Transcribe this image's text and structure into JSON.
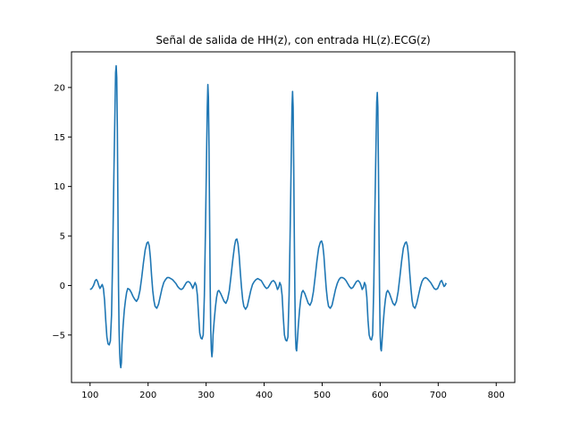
{
  "chart_data": {
    "type": "line",
    "title": "Señal de salida de HH(z), con entrada HL(z).ECG(z)",
    "xlabel": "",
    "ylabel": "",
    "xlim": [
      68,
      832
    ],
    "ylim": [
      -9.8,
      23.6
    ],
    "xticks": [
      100,
      200,
      300,
      400,
      500,
      600,
      700,
      800
    ],
    "yticks": [
      -5,
      0,
      5,
      10,
      15,
      20
    ],
    "grid": false,
    "legend": "none",
    "series_color": "#1f77b4",
    "series": [
      {
        "points": [
          [
            100,
            -0.4
          ],
          [
            103,
            -0.3
          ],
          [
            106,
            0.0
          ],
          [
            109,
            0.5
          ],
          [
            111,
            0.6
          ],
          [
            113,
            0.4
          ],
          [
            115,
            0.0
          ],
          [
            117,
            -0.3
          ],
          [
            119,
            -0.1
          ],
          [
            121,
            0.1
          ],
          [
            123,
            -0.3
          ],
          [
            125,
            -1.5
          ],
          [
            127,
            -3.5
          ],
          [
            129,
            -5.2
          ],
          [
            131,
            -5.9
          ],
          [
            133,
            -6.0
          ],
          [
            135,
            -5.6
          ],
          [
            137,
            -3.0
          ],
          [
            139,
            3.0
          ],
          [
            141,
            11.0
          ],
          [
            143,
            18.0
          ],
          [
            144,
            21.5
          ],
          [
            145,
            22.2
          ],
          [
            146,
            21.0
          ],
          [
            147,
            16.0
          ],
          [
            148,
            8.0
          ],
          [
            149,
            0.0
          ],
          [
            150,
            -4.5
          ],
          [
            151,
            -6.8
          ],
          [
            152,
            -7.9
          ],
          [
            153,
            -8.3
          ],
          [
            154,
            -7.8
          ],
          [
            155,
            -6.0
          ],
          [
            157,
            -4.0
          ],
          [
            159,
            -2.5
          ],
          [
            161,
            -1.5
          ],
          [
            163,
            -0.7
          ],
          [
            165,
            -0.3
          ],
          [
            168,
            -0.4
          ],
          [
            171,
            -0.7
          ],
          [
            174,
            -1.1
          ],
          [
            177,
            -1.4
          ],
          [
            180,
            -1.6
          ],
          [
            183,
            -1.3
          ],
          [
            186,
            -0.5
          ],
          [
            189,
            0.8
          ],
          [
            192,
            2.3
          ],
          [
            195,
            3.6
          ],
          [
            198,
            4.3
          ],
          [
            200,
            4.4
          ],
          [
            202,
            4.0
          ],
          [
            204,
            2.8
          ],
          [
            206,
            1.0
          ],
          [
            208,
            -0.5
          ],
          [
            210,
            -1.5
          ],
          [
            212,
            -2.1
          ],
          [
            215,
            -2.3
          ],
          [
            218,
            -1.9
          ],
          [
            221,
            -1.1
          ],
          [
            224,
            -0.3
          ],
          [
            227,
            0.3
          ],
          [
            230,
            0.6
          ],
          [
            233,
            0.8
          ],
          [
            236,
            0.8
          ],
          [
            239,
            0.7
          ],
          [
            242,
            0.6
          ],
          [
            245,
            0.4
          ],
          [
            248,
            0.2
          ],
          [
            251,
            -0.1
          ],
          [
            254,
            -0.3
          ],
          [
            257,
            -0.4
          ],
          [
            260,
            -0.3
          ],
          [
            263,
            0.0
          ],
          [
            266,
            0.3
          ],
          [
            269,
            0.4
          ],
          [
            272,
            0.3
          ],
          [
            275,
            0.0
          ],
          [
            277,
            -0.3
          ],
          [
            279,
            0.0
          ],
          [
            281,
            0.3
          ],
          [
            283,
            0.0
          ],
          [
            285,
            -1.0
          ],
          [
            287,
            -3.0
          ],
          [
            289,
            -4.8
          ],
          [
            291,
            -5.3
          ],
          [
            293,
            -5.4
          ],
          [
            295,
            -5.0
          ],
          [
            297,
            -1.0
          ],
          [
            299,
            6.0
          ],
          [
            301,
            14.0
          ],
          [
            302,
            18.0
          ],
          [
            303,
            20.3
          ],
          [
            304,
            19.0
          ],
          [
            305,
            14.0
          ],
          [
            306,
            7.0
          ],
          [
            307,
            0.0
          ],
          [
            308,
            -4.5
          ],
          [
            309,
            -6.5
          ],
          [
            310,
            -7.2
          ],
          [
            311,
            -6.6
          ],
          [
            312,
            -5.0
          ],
          [
            314,
            -3.5
          ],
          [
            316,
            -2.2
          ],
          [
            318,
            -1.2
          ],
          [
            320,
            -0.6
          ],
          [
            322,
            -0.5
          ],
          [
            325,
            -0.8
          ],
          [
            328,
            -1.2
          ],
          [
            331,
            -1.6
          ],
          [
            334,
            -1.8
          ],
          [
            337,
            -1.4
          ],
          [
            340,
            -0.5
          ],
          [
            343,
            1.0
          ],
          [
            346,
            2.6
          ],
          [
            349,
            4.0
          ],
          [
            351,
            4.6
          ],
          [
            353,
            4.7
          ],
          [
            355,
            4.2
          ],
          [
            357,
            3.0
          ],
          [
            359,
            1.3
          ],
          [
            361,
            -0.2
          ],
          [
            363,
            -1.4
          ],
          [
            365,
            -2.1
          ],
          [
            368,
            -2.4
          ],
          [
            371,
            -2.1
          ],
          [
            374,
            -1.3
          ],
          [
            377,
            -0.5
          ],
          [
            380,
            0.1
          ],
          [
            383,
            0.4
          ],
          [
            386,
            0.6
          ],
          [
            389,
            0.7
          ],
          [
            392,
            0.6
          ],
          [
            395,
            0.5
          ],
          [
            398,
            0.2
          ],
          [
            401,
            -0.1
          ],
          [
            404,
            -0.3
          ],
          [
            407,
            -0.2
          ],
          [
            410,
            0.1
          ],
          [
            413,
            0.4
          ],
          [
            416,
            0.5
          ],
          [
            419,
            0.3
          ],
          [
            421,
            0.0
          ],
          [
            423,
            -0.4
          ],
          [
            425,
            -0.2
          ],
          [
            427,
            0.3
          ],
          [
            429,
            0.0
          ],
          [
            431,
            -1.0
          ],
          [
            433,
            -3.2
          ],
          [
            435,
            -5.0
          ],
          [
            437,
            -5.5
          ],
          [
            439,
            -5.6
          ],
          [
            441,
            -5.2
          ],
          [
            443,
            -1.0
          ],
          [
            445,
            6.0
          ],
          [
            447,
            14.0
          ],
          [
            448,
            18.0
          ],
          [
            449,
            19.6
          ],
          [
            450,
            18.0
          ],
          [
            451,
            12.0
          ],
          [
            452,
            5.0
          ],
          [
            453,
            -1.0
          ],
          [
            454,
            -5.0
          ],
          [
            455,
            -6.4
          ],
          [
            456,
            -6.6
          ],
          [
            457,
            -5.8
          ],
          [
            459,
            -4.0
          ],
          [
            461,
            -2.5
          ],
          [
            463,
            -1.4
          ],
          [
            465,
            -0.7
          ],
          [
            467,
            -0.5
          ],
          [
            470,
            -0.8
          ],
          [
            473,
            -1.3
          ],
          [
            476,
            -1.8
          ],
          [
            479,
            -2.0
          ],
          [
            482,
            -1.6
          ],
          [
            485,
            -0.6
          ],
          [
            488,
            0.9
          ],
          [
            491,
            2.5
          ],
          [
            494,
            3.8
          ],
          [
            497,
            4.4
          ],
          [
            499,
            4.5
          ],
          [
            501,
            4.1
          ],
          [
            503,
            3.0
          ],
          [
            505,
            1.3
          ],
          [
            507,
            -0.3
          ],
          [
            509,
            -1.4
          ],
          [
            511,
            -2.1
          ],
          [
            514,
            -2.3
          ],
          [
            517,
            -2.0
          ],
          [
            520,
            -1.2
          ],
          [
            523,
            -0.4
          ],
          [
            526,
            0.2
          ],
          [
            529,
            0.6
          ],
          [
            532,
            0.8
          ],
          [
            535,
            0.8
          ],
          [
            538,
            0.7
          ],
          [
            541,
            0.5
          ],
          [
            544,
            0.2
          ],
          [
            547,
            -0.1
          ],
          [
            550,
            -0.3
          ],
          [
            553,
            -0.2
          ],
          [
            556,
            0.1
          ],
          [
            559,
            0.4
          ],
          [
            562,
            0.5
          ],
          [
            565,
            0.3
          ],
          [
            567,
            0.0
          ],
          [
            569,
            -0.4
          ],
          [
            571,
            -0.2
          ],
          [
            573,
            0.3
          ],
          [
            575,
            0.0
          ],
          [
            577,
            -1.2
          ],
          [
            579,
            -3.5
          ],
          [
            581,
            -5.0
          ],
          [
            583,
            -5.4
          ],
          [
            585,
            -5.5
          ],
          [
            587,
            -5.0
          ],
          [
            589,
            0.0
          ],
          [
            591,
            8.0
          ],
          [
            593,
            15.0
          ],
          [
            594,
            18.5
          ],
          [
            595,
            19.5
          ],
          [
            596,
            18.0
          ],
          [
            597,
            12.0
          ],
          [
            598,
            5.0
          ],
          [
            599,
            -1.0
          ],
          [
            600,
            -5.0
          ],
          [
            601,
            -6.4
          ],
          [
            602,
            -6.6
          ],
          [
            603,
            -5.8
          ],
          [
            605,
            -4.0
          ],
          [
            607,
            -2.5
          ],
          [
            609,
            -1.4
          ],
          [
            611,
            -0.7
          ],
          [
            613,
            -0.5
          ],
          [
            616,
            -0.8
          ],
          [
            619,
            -1.3
          ],
          [
            622,
            -1.8
          ],
          [
            625,
            -2.0
          ],
          [
            628,
            -1.6
          ],
          [
            631,
            -0.6
          ],
          [
            634,
            0.9
          ],
          [
            637,
            2.5
          ],
          [
            640,
            3.8
          ],
          [
            643,
            4.3
          ],
          [
            645,
            4.4
          ],
          [
            647,
            4.0
          ],
          [
            649,
            2.9
          ],
          [
            651,
            1.2
          ],
          [
            653,
            -0.3
          ],
          [
            655,
            -1.5
          ],
          [
            657,
            -2.1
          ],
          [
            660,
            -2.3
          ],
          [
            663,
            -1.8
          ],
          [
            666,
            -1.0
          ],
          [
            669,
            -0.2
          ],
          [
            672,
            0.4
          ],
          [
            675,
            0.7
          ],
          [
            678,
            0.8
          ],
          [
            681,
            0.7
          ],
          [
            684,
            0.5
          ],
          [
            687,
            0.3
          ],
          [
            690,
            0.0
          ],
          [
            693,
            -0.3
          ],
          [
            696,
            -0.4
          ],
          [
            699,
            -0.3
          ],
          [
            702,
            0.1
          ],
          [
            704,
            0.4
          ],
          [
            706,
            0.5
          ],
          [
            708,
            0.2
          ],
          [
            710,
            -0.1
          ],
          [
            712,
            0.0
          ],
          [
            713,
            0.2
          ],
          [
            714,
            0.1
          ]
        ]
      }
    ]
  }
}
